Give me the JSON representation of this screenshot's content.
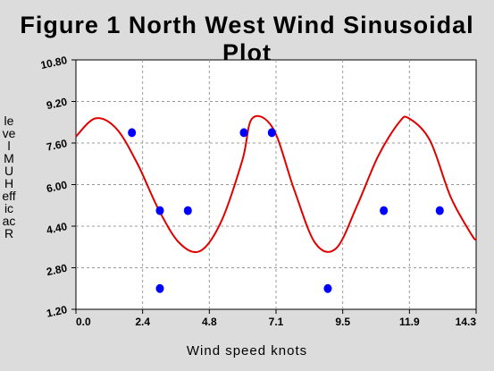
{
  "chart_data": {
    "type": "scatter",
    "title": "Figure 1 North West Wind  Sinusoidal Plot",
    "xlabel": "Wind speed knots",
    "ylabel": "level MUH efficacR",
    "xlim": [
      0.0,
      14.3
    ],
    "ylim": [
      1.2,
      10.8
    ],
    "xticks": [
      "0.0",
      "2.4",
      "4.8",
      "7.1",
      "9.5",
      "11.9",
      "14.3"
    ],
    "yticks": [
      "1.20",
      "2.80",
      "4.40",
      "6.00",
      "7.60",
      "9.20",
      "10.80"
    ],
    "grid": true,
    "series": [
      {
        "kind": "points",
        "color": "#0000ff",
        "x": [
          2.0,
          3.0,
          3.0,
          4.0,
          6.0,
          7.0,
          9.0,
          11.0,
          13.0
        ],
        "y": [
          8.0,
          5.0,
          2.0,
          5.0,
          8.0,
          8.0,
          2.0,
          5.0,
          5.0
        ]
      },
      {
        "kind": "sine-fit",
        "color": "#e00000",
        "x": [
          0.0,
          0.7,
          1.45,
          2.2,
          2.95,
          3.7,
          4.45,
          5.2,
          5.95,
          6.3,
          7.05,
          7.8,
          8.55,
          9.3,
          10.05,
          10.8,
          11.55,
          11.9,
          12.65,
          13.4,
          14.15,
          14.3
        ],
        "y": [
          7.85,
          8.55,
          8.15,
          6.8,
          5.05,
          3.75,
          3.45,
          4.6,
          6.95,
          8.55,
          8.15,
          5.8,
          3.75,
          3.55,
          5.2,
          7.1,
          8.4,
          8.55,
          7.7,
          5.5,
          4.05,
          3.9
        ]
      }
    ]
  }
}
